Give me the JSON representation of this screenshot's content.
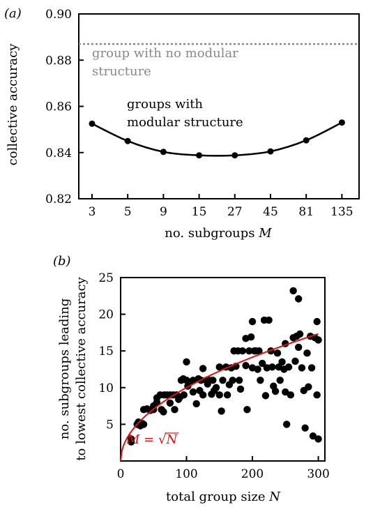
{
  "chart_data": [
    {
      "type": "line",
      "panel_label": "(a)",
      "xlabel_prefix": "no. subgroups ",
      "xlabel_var": "M",
      "ylabel": "collective accuracy",
      "categories": [
        "3",
        "5",
        "9",
        "15",
        "27",
        "45",
        "81",
        "135"
      ],
      "yticks": [
        "0.82",
        "0.84",
        "0.86",
        "0.88",
        "0.90"
      ],
      "ylim": [
        0.82,
        0.9
      ],
      "series": [
        {
          "name": "groups with modular structure",
          "values": [
            0.8525,
            0.845,
            0.8403,
            0.8388,
            0.8388,
            0.8405,
            0.8453,
            0.853
          ],
          "color": "#000000"
        }
      ],
      "reference_line": {
        "value": 0.887,
        "color": "#888888",
        "style": "dotted"
      },
      "annotations": {
        "reference_line_1": "group with no modular",
        "reference_line_2": "structure",
        "series_line_1": "groups with",
        "series_line_2": "modular structure"
      }
    },
    {
      "type": "scatter",
      "panel_label": "(b)",
      "xlabel_prefix": "total group size ",
      "xlabel_var": "N",
      "ylabel_line1": "no. subgroups leading",
      "ylabel_line2": "to lowest collective accuracy",
      "xticks": [
        "0",
        "100",
        "200",
        "300"
      ],
      "yticks": [
        "5",
        "10",
        "15",
        "20",
        "25"
      ],
      "xlim": [
        0,
        310
      ],
      "ylim": [
        0,
        25
      ],
      "points": [
        [
          16,
          2.6
        ],
        [
          16,
          3.0
        ],
        [
          25,
          5.0
        ],
        [
          27,
          5.3
        ],
        [
          30,
          4.8
        ],
        [
          33,
          5.1
        ],
        [
          35,
          5.0
        ],
        [
          35,
          7.0
        ],
        [
          40,
          7.1
        ],
        [
          45,
          6.9
        ],
        [
          50,
          7.0
        ],
        [
          50,
          7.5
        ],
        [
          55,
          8.0
        ],
        [
          55,
          8.6
        ],
        [
          60,
          9.0
        ],
        [
          62,
          7.0
        ],
        [
          65,
          6.7
        ],
        [
          66,
          9.0
        ],
        [
          70,
          9.0
        ],
        [
          75,
          9.0
        ],
        [
          75,
          7.9
        ],
        [
          80,
          9.0
        ],
        [
          82,
          7.0
        ],
        [
          85,
          9.0
        ],
        [
          88,
          8.4
        ],
        [
          90,
          8.7
        ],
        [
          92,
          11.0
        ],
        [
          95,
          11.2
        ],
        [
          96,
          9.0
        ],
        [
          100,
          11.0
        ],
        [
          100,
          13.5
        ],
        [
          102,
          10.2
        ],
        [
          105,
          10.7
        ],
        [
          110,
          11.0
        ],
        [
          110,
          9.4
        ],
        [
          115,
          7.8
        ],
        [
          118,
          11.2
        ],
        [
          120,
          9.6
        ],
        [
          122,
          11.0
        ],
        [
          125,
          12.6
        ],
        [
          125,
          9.0
        ],
        [
          130,
          11.0
        ],
        [
          132,
          10.5
        ],
        [
          135,
          11.0
        ],
        [
          138,
          9.1
        ],
        [
          140,
          11.0
        ],
        [
          142,
          9.6
        ],
        [
          145,
          10.0
        ],
        [
          150,
          12.8
        ],
        [
          150,
          9.0
        ],
        [
          153,
          6.8
        ],
        [
          155,
          11.0
        ],
        [
          160,
          12.8
        ],
        [
          162,
          9.0
        ],
        [
          165,
          10.4
        ],
        [
          168,
          12.7
        ],
        [
          170,
          11.0
        ],
        [
          172,
          15.0
        ],
        [
          175,
          12.9
        ],
        [
          178,
          15.0
        ],
        [
          180,
          11.0
        ],
        [
          182,
          9.8
        ],
        [
          185,
          15.0
        ],
        [
          190,
          16.7
        ],
        [
          190,
          13.0
        ],
        [
          192,
          7.0
        ],
        [
          195,
          15.0
        ],
        [
          198,
          16.9
        ],
        [
          200,
          19.0
        ],
        [
          200,
          12.7
        ],
        [
          203,
          15.0
        ],
        [
          205,
          15.0
        ],
        [
          208,
          12.5
        ],
        [
          210,
          15.0
        ],
        [
          212,
          11.0
        ],
        [
          215,
          13.3
        ],
        [
          218,
          19.2
        ],
        [
          220,
          8.9
        ],
        [
          222,
          12.7
        ],
        [
          225,
          19.2
        ],
        [
          228,
          15.0
        ],
        [
          230,
          12.8
        ],
        [
          232,
          10.2
        ],
        [
          235,
          9.5
        ],
        [
          238,
          14.7
        ],
        [
          240,
          12.8
        ],
        [
          242,
          11.0
        ],
        [
          245,
          13.5
        ],
        [
          248,
          12.5
        ],
        [
          250,
          16.0
        ],
        [
          250,
          9.4
        ],
        [
          252,
          5.0
        ],
        [
          255,
          12.8
        ],
        [
          258,
          9.0
        ],
        [
          262,
          16.8
        ],
        [
          262,
          23.2
        ],
        [
          265,
          13.6
        ],
        [
          267,
          17.0
        ],
        [
          270,
          22.1
        ],
        [
          270,
          15.5
        ],
        [
          272,
          17.3
        ],
        [
          275,
          12.7
        ],
        [
          278,
          9.6
        ],
        [
          280,
          4.5
        ],
        [
          283,
          14.7
        ],
        [
          285,
          10.1
        ],
        [
          288,
          17.0
        ],
        [
          290,
          12.7
        ],
        [
          292,
          3.4
        ],
        [
          295,
          16.8
        ],
        [
          298,
          19.0
        ],
        [
          298,
          9.0
        ],
        [
          300,
          3.0
        ],
        [
          300,
          16.5
        ]
      ],
      "fit": {
        "function": "sqrt",
        "color": "#e01010",
        "label_var": "M",
        "label_eq": " = ",
        "label_sqrt": "√",
        "label_rad": "N"
      }
    }
  ]
}
